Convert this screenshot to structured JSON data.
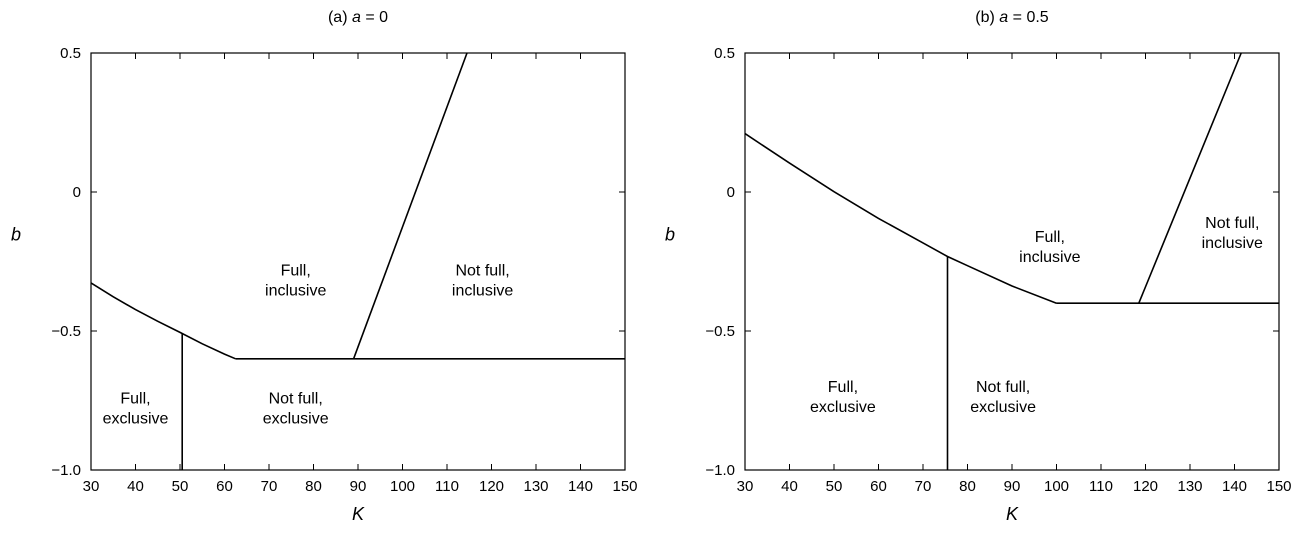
{
  "chart_data": [
    {
      "type": "line",
      "title_prefix": "(a) ",
      "title_var": "a",
      "title_value": " = 0",
      "xlabel": "K",
      "ylabel": "b",
      "xlim": [
        30,
        150
      ],
      "ylim": [
        -1.0,
        0.5
      ],
      "xticks": [
        30,
        40,
        50,
        60,
        70,
        80,
        90,
        100,
        110,
        120,
        130,
        140,
        150
      ],
      "xtick_labels": [
        "30",
        "40",
        "50",
        "60",
        "70",
        "80",
        "90",
        "100",
        "110",
        "120",
        "130",
        "140",
        "150"
      ],
      "yticks": [
        0.5,
        0,
        -0.5,
        -1.0
      ],
      "ytick_labels": [
        "0.5",
        "0",
        "−0.5",
        "−1.0"
      ],
      "series": [
        {
          "x": [
            30,
            35,
            40,
            45,
            50,
            55,
            60,
            62.5
          ],
          "y": [
            -0.327,
            -0.377,
            -0.423,
            -0.465,
            -0.505,
            -0.546,
            -0.583,
            -0.6
          ]
        },
        {
          "x": [
            62.5,
            150
          ],
          "y": [
            -0.6,
            -0.6
          ]
        },
        {
          "x": [
            50.5,
            50.5
          ],
          "y": [
            -1.0,
            -0.51
          ]
        },
        {
          "x": [
            89,
            114.5
          ],
          "y": [
            -0.6,
            0.5
          ]
        }
      ],
      "regions": [
        {
          "lines": [
            "Full,",
            "exclusive"
          ],
          "x": 40,
          "y": -0.76
        },
        {
          "lines": [
            "Not full,",
            "exclusive"
          ],
          "x": 76,
          "y": -0.76
        },
        {
          "lines": [
            "Full,",
            "inclusive"
          ],
          "x": 76,
          "y": -0.3
        },
        {
          "lines": [
            "Not full,",
            "inclusive"
          ],
          "x": 118,
          "y": -0.3
        }
      ]
    },
    {
      "type": "line",
      "title_prefix": "(b) ",
      "title_var": "a",
      "title_value": " = 0.5",
      "xlabel": "K",
      "ylabel": "b",
      "xlim": [
        30,
        150
      ],
      "ylim": [
        -1.0,
        0.5
      ],
      "xticks": [
        30,
        40,
        50,
        60,
        70,
        80,
        90,
        100,
        110,
        120,
        130,
        140,
        150
      ],
      "xtick_labels": [
        "30",
        "40",
        "50",
        "60",
        "70",
        "80",
        "90",
        "100",
        "110",
        "120",
        "130",
        "140",
        "150"
      ],
      "yticks": [
        0.5,
        0,
        -0.5,
        -1.0
      ],
      "ytick_labels": [
        "0.5",
        "0",
        "−0.5",
        "−1.0"
      ],
      "series": [
        {
          "x": [
            30,
            40,
            50,
            60,
            70,
            75.5,
            80,
            90,
            100
          ],
          "y": [
            0.21,
            0.104,
            0.001,
            -0.095,
            -0.183,
            -0.232,
            -0.265,
            -0.338,
            -0.4
          ]
        },
        {
          "x": [
            100,
            150
          ],
          "y": [
            -0.4,
            -0.4
          ]
        },
        {
          "x": [
            75.5,
            75.5
          ],
          "y": [
            -1.0,
            -0.232
          ]
        },
        {
          "x": [
            118.5,
            141.5
          ],
          "y": [
            -0.4,
            0.5
          ]
        }
      ],
      "regions": [
        {
          "lines": [
            "Full,",
            "exclusive"
          ],
          "x": 52,
          "y": -0.72
        },
        {
          "lines": [
            "Not full,",
            "exclusive"
          ],
          "x": 88,
          "y": -0.72
        },
        {
          "lines": [
            "Full,",
            "inclusive"
          ],
          "x": 98.5,
          "y": -0.18
        },
        {
          "lines": [
            "Not full,",
            "inclusive"
          ],
          "x": 139.5,
          "y": -0.13
        }
      ]
    }
  ]
}
